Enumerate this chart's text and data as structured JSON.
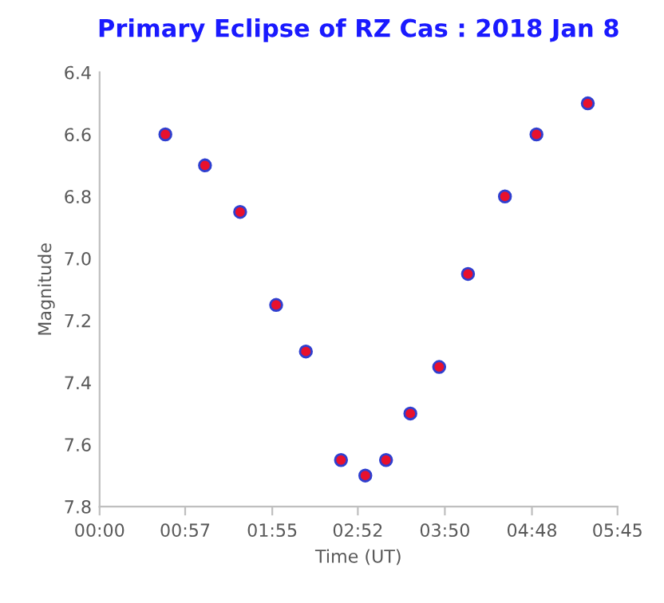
{
  "chart_data": {
    "type": "scatter",
    "title": "Primary Eclipse of RZ Cas : 2018 Jan 8",
    "xlabel": "Time (UT)",
    "ylabel": "Magnitude",
    "x": [
      0.73,
      1.17,
      1.56,
      1.96,
      2.29,
      2.68,
      2.95,
      3.18,
      3.45,
      3.77,
      4.09,
      4.5,
      4.85,
      5.42
    ],
    "series": [
      {
        "color": "#e8112d",
        "values": [
          6.6,
          6.7,
          6.85,
          7.15,
          7.3,
          7.65,
          7.7,
          7.65,
          7.5,
          7.35,
          7.05,
          6.8,
          6.6,
          6.5
        ]
      }
    ],
    "marker": "circle",
    "xlim": [
      0,
      5.75
    ],
    "xticks": [
      {
        "value": 0,
        "label": "00:00"
      },
      {
        "value": 0.95,
        "label": "00:57"
      },
      {
        "value": 1.917,
        "label": "01:55"
      },
      {
        "value": 2.867,
        "label": "02:52"
      },
      {
        "value": 3.833,
        "label": "03:50"
      },
      {
        "value": 4.8,
        "label": "04:48"
      },
      {
        "value": 5.75,
        "label": "05:45"
      }
    ],
    "ylim": [
      7.8,
      6.4
    ],
    "yticks": [
      6.4,
      6.6,
      6.8,
      {
        "value": 7.0,
        "label": "7.0"
      },
      7.2,
      7.4,
      7.6,
      7.8
    ],
    "grid": false,
    "legend": false
  }
}
